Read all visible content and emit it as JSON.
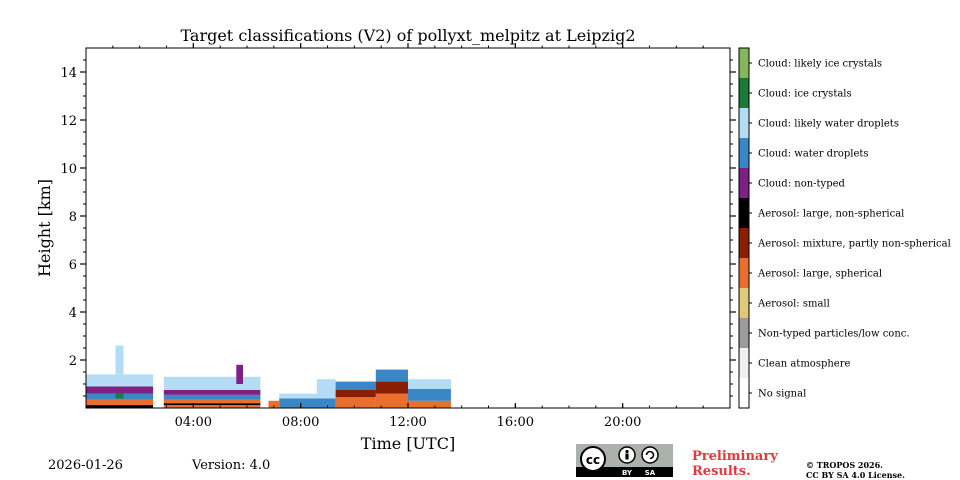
{
  "chart_data": {
    "type": "heatmap",
    "title": "Target classifications (V2) of pollyxt_melpitz at Leipzig2",
    "xlabel": "Time [UTC]",
    "ylabel": "Height [km]",
    "xlim": [
      0,
      24
    ],
    "ylim": [
      0,
      15
    ],
    "x_ticks": [
      {
        "value": 4,
        "label": "04:00"
      },
      {
        "value": 8,
        "label": "08:00"
      },
      {
        "value": 12,
        "label": "12:00"
      },
      {
        "value": 16,
        "label": "16:00"
      },
      {
        "value": 20,
        "label": "20:00"
      }
    ],
    "y_ticks": [
      {
        "value": 2,
        "label": "2"
      },
      {
        "value": 4,
        "label": "4"
      },
      {
        "value": 6,
        "label": "6"
      },
      {
        "value": 8,
        "label": "8"
      },
      {
        "value": 10,
        "label": "10"
      },
      {
        "value": 12,
        "label": "12"
      },
      {
        "value": 14,
        "label": "14"
      }
    ],
    "classes": [
      {
        "label": "No signal",
        "color": "#ffffff"
      },
      {
        "label": "Clean atmosphere",
        "color": "#efefef"
      },
      {
        "label": "Non-typed particles/low conc.",
        "color": "#9b9b9b"
      },
      {
        "label": "Aerosol: small",
        "color": "#e0c878"
      },
      {
        "label": "Aerosol: large, spherical",
        "color": "#ea6e2e"
      },
      {
        "label": "Aerosol: mixture, partly non-spherical",
        "color": "#8a1e00"
      },
      {
        "label": "Aerosol: large, non-spherical",
        "color": "#000000"
      },
      {
        "label": "Cloud: non-typed",
        "color": "#7d2184"
      },
      {
        "label": "Cloud: water droplets",
        "color": "#3a87c8"
      },
      {
        "label": "Cloud: likely water droplets",
        "color": "#b4dcf5"
      },
      {
        "label": "Cloud: ice crystals",
        "color": "#1a7a3a"
      },
      {
        "label": "Cloud: likely ice crystals",
        "color": "#86b65c"
      }
    ],
    "segments": [
      {
        "t0": 0.0,
        "t1": 2.5,
        "layers": [
          [
            0,
            0.12,
            6
          ],
          [
            0.12,
            0.35,
            4
          ],
          [
            0.35,
            0.6,
            8
          ],
          [
            0.6,
            0.9,
            7
          ],
          [
            0.9,
            1.4,
            9
          ]
        ]
      },
      {
        "t0": 1.1,
        "t1": 1.4,
        "layers": [
          [
            0.4,
            0.6,
            10
          ],
          [
            1.4,
            2.6,
            9
          ]
        ]
      },
      {
        "t0": 2.9,
        "t1": 6.5,
        "layers": [
          [
            0,
            0.12,
            4
          ],
          [
            0.12,
            0.2,
            6
          ],
          [
            0.2,
            0.35,
            4
          ],
          [
            0.35,
            0.55,
            8
          ],
          [
            0.55,
            0.75,
            7
          ],
          [
            0.75,
            1.3,
            9
          ]
        ]
      },
      {
        "t0": 5.6,
        "t1": 5.85,
        "layers": [
          [
            1.0,
            1.8,
            7
          ]
        ]
      },
      {
        "t0": 6.8,
        "t1": 7.2,
        "layers": [
          [
            0,
            0.3,
            4
          ]
        ]
      },
      {
        "t0": 7.2,
        "t1": 9.3,
        "layers": [
          [
            0,
            0.4,
            8
          ],
          [
            0.4,
            0.6,
            9
          ]
        ]
      },
      {
        "t0": 8.6,
        "t1": 9.3,
        "layers": [
          [
            0.4,
            1.2,
            9
          ]
        ]
      },
      {
        "t0": 9.3,
        "t1": 10.8,
        "layers": [
          [
            0,
            0.45,
            4
          ],
          [
            0.45,
            0.75,
            5
          ],
          [
            0.75,
            1.1,
            8
          ]
        ]
      },
      {
        "t0": 10.8,
        "t1": 12.0,
        "layers": [
          [
            0,
            0.6,
            4
          ],
          [
            0.6,
            1.1,
            5
          ],
          [
            1.1,
            1.6,
            8
          ]
        ]
      },
      {
        "t0": 12.0,
        "t1": 13.6,
        "layers": [
          [
            0,
            0.3,
            4
          ],
          [
            0.3,
            0.8,
            8
          ],
          [
            0.8,
            1.2,
            9
          ]
        ]
      }
    ]
  },
  "footer": {
    "date": "2026-01-26",
    "version": "Version: 4.0",
    "preliminary_line1": "Preliminary",
    "preliminary_line2": "Results.",
    "copyright_line1": "© TROPOS 2026.",
    "copyright_line2": "CC BY SA 4.0 License.",
    "cc_badge_text": "cc",
    "cc_by": "BY",
    "cc_sa": "SA"
  }
}
